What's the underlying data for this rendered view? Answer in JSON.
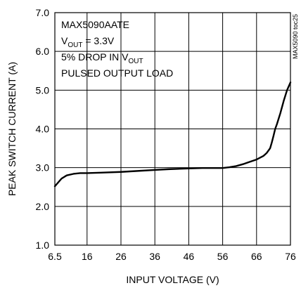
{
  "chart_data": {
    "type": "line",
    "xlabel": "INPUT VOLTAGE (V)",
    "ylabel": "PEAK SWITCH CURRENT (A)",
    "xlim": [
      6.5,
      76
    ],
    "ylim": [
      1.0,
      7.0
    ],
    "x_ticks": [
      "6.5",
      "16",
      "26",
      "36",
      "46",
      "56",
      "66",
      "76"
    ],
    "y_ticks": [
      "1.0",
      "2.0",
      "3.0",
      "4.0",
      "5.0",
      "6.0",
      "7.0"
    ],
    "grid": true,
    "annotations": {
      "line1": "MAX5090AATE",
      "line2_main": "V",
      "line2_sub": "OUT",
      "line2_rest": " = 3.3V",
      "line3_main": "5% DROP IN V",
      "line3_sub": "OUT",
      "line4": "PULSED OUTPUT LOAD"
    },
    "doc_code": "MAX5090 toc25",
    "series": [
      {
        "x": [
          6.5,
          7.5,
          8.5,
          10,
          12,
          14,
          16,
          20,
          26,
          30,
          36,
          40,
          46,
          50,
          54,
          56,
          58,
          60,
          62,
          64,
          66,
          68,
          69,
          70,
          70.5,
          71,
          71.5,
          72,
          73,
          74,
          75,
          76
        ],
        "y": [
          2.52,
          2.62,
          2.72,
          2.8,
          2.84,
          2.86,
          2.86,
          2.87,
          2.89,
          2.91,
          2.94,
          2.96,
          2.98,
          2.99,
          2.99,
          2.99,
          3.01,
          3.04,
          3.09,
          3.15,
          3.21,
          3.3,
          3.38,
          3.5,
          3.65,
          3.82,
          4.0,
          4.12,
          4.4,
          4.72,
          5.0,
          5.2
        ]
      }
    ]
  }
}
